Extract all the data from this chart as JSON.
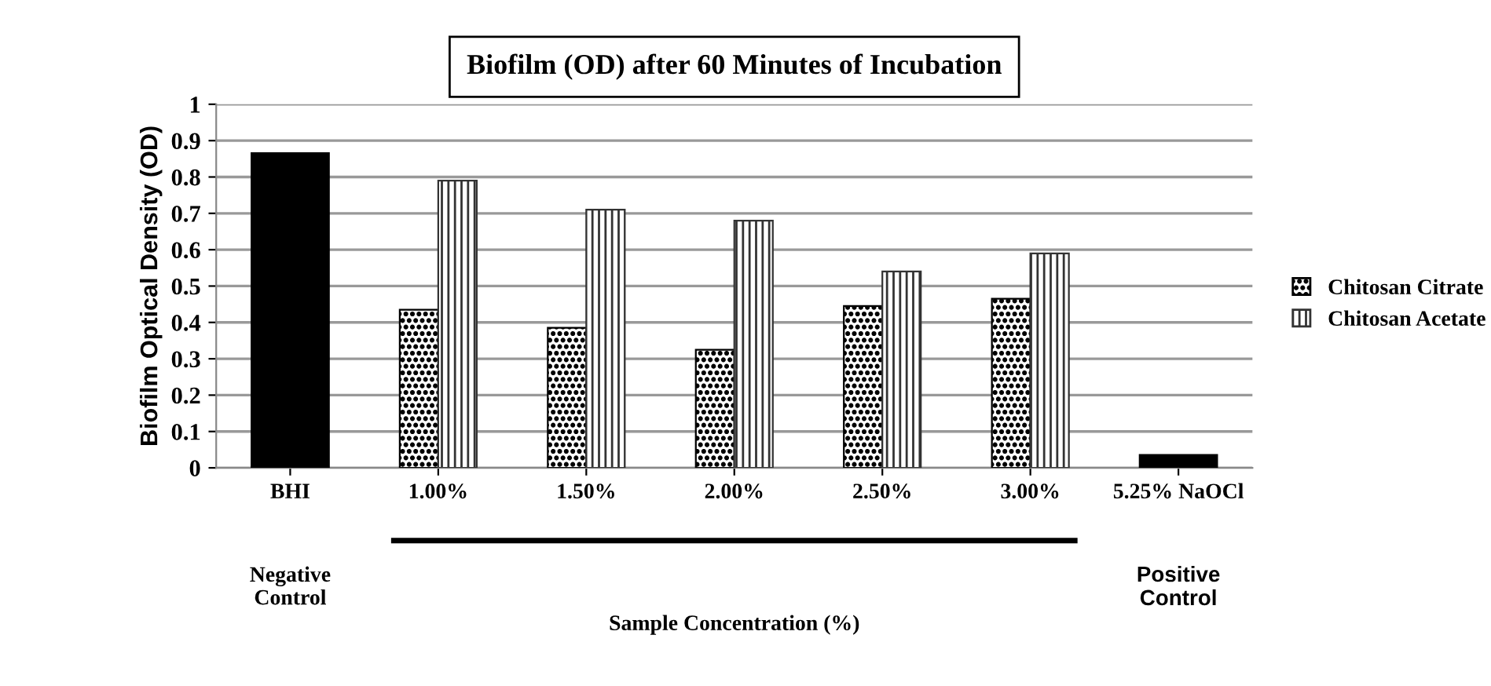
{
  "chart_data": {
    "type": "bar",
    "title": "Biofilm (OD) after 60 Minutes of Incubation",
    "ylabel": "Biofilm Optical Density (OD)",
    "categories": [
      "BHI",
      "1.00%",
      "1.50%",
      "2.00%",
      "2.50%",
      "3.00%",
      "5.25% NaOCl"
    ],
    "series": [
      {
        "color": "#000000",
        "values": [
          0.865,
          null,
          null,
          null,
          null,
          null,
          0.035
        ]
      },
      {
        "name": "Chitosan Citrate",
        "color": "#000000",
        "values": [
          null,
          0.435,
          0.385,
          0.325,
          0.445,
          0.465,
          null
        ]
      },
      {
        "name": "Chitosan Acetate",
        "color": "#333333",
        "values": [
          null,
          0.79,
          0.71,
          0.68,
          0.54,
          0.59,
          null
        ]
      }
    ],
    "ylim": [
      0,
      1
    ],
    "yticks": [
      0,
      0.1,
      0.2,
      0.3,
      0.4,
      0.5,
      0.6,
      0.7,
      0.8,
      0.9,
      1
    ],
    "grid": "y",
    "legend": "right",
    "annotations": [
      "Negative\nControl",
      "Sample Concentration (%)",
      "Positive\nControl"
    ]
  }
}
